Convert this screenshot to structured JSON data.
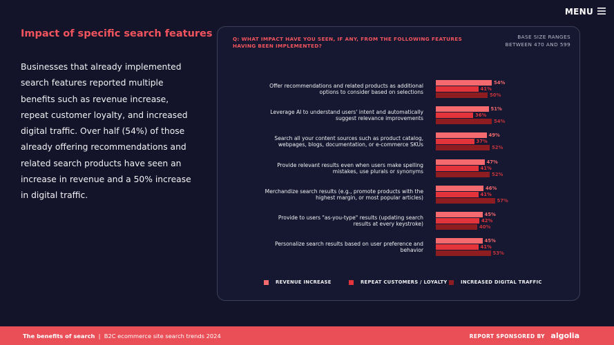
{
  "menu": "MENU",
  "section_title": "Impact of specific search features",
  "body_text": "Businesses that already implemented search features reported multiple benefits such as revenue increase, repeat customer loyalty, and increased digital traffic. Over half (54%) of those already offering recommendations and related search products have seen an increase in revenue and a 50% increase in digital traffic.",
  "chart_data": {
    "type": "bar",
    "orientation": "horizontal",
    "title": "Q: WHAT IMPACT HAVE YOU SEEN, IF ANY, FROM THE FOLLOWING FEATURES HAVING BEEN IMPLEMENTED?",
    "subtitle": "BASE SIZE RANGES BETWEEN 470 AND 599",
    "categories": [
      "Offer recommendations and related products as additional options to consider based on selections",
      "Leverage AI to understand users' intent and automatically suggest relevance improvements",
      "Search all your content sources such as product catalog, webpages, blogs, documentation, or e-commerce SKUs",
      "Provide relevant results even when users make spelling mistakes, use plurals or synonyms",
      "Merchandize search results (e.g., promote products with the highest margin, or most popular articles)",
      "Provide to users \"as-you-type\" results (updating search results at every keystroke)",
      "Personalize search results based on user preference and behavior"
    ],
    "series": [
      {
        "name": "REVENUE INCREASE",
        "color": "#f46a6f",
        "values": [
          54,
          51,
          49,
          47,
          46,
          45,
          45
        ],
        "value_labels": [
          "54%",
          "51%",
          "49%",
          "47%",
          "46%",
          "45%",
          "45%"
        ]
      },
      {
        "name": "REPEAT CUSTOMERS / LOYALTY",
        "color": "#e3343b",
        "values": [
          41,
          36,
          37,
          41,
          41,
          42,
          41
        ],
        "value_labels": [
          "41%",
          "36%",
          "37%",
          "41%",
          "41%",
          "42%",
          "41%"
        ]
      },
      {
        "name": "INCREASED DIGITAL TRAFFIC",
        "color": "#8e1d22",
        "values": [
          50,
          54,
          52,
          52,
          57,
          40,
          53
        ],
        "value_labels": [
          "50%",
          "54%",
          "52%",
          "52%",
          "57%",
          "40%",
          "53%"
        ]
      }
    ],
    "legend": "bottom"
  },
  "footer": {
    "report": "The benefits of search",
    "subtitle": "B2C ecommerce site search trends 2024",
    "sponsor": "REPORT SPONSORED BY",
    "logo": "algolia"
  }
}
